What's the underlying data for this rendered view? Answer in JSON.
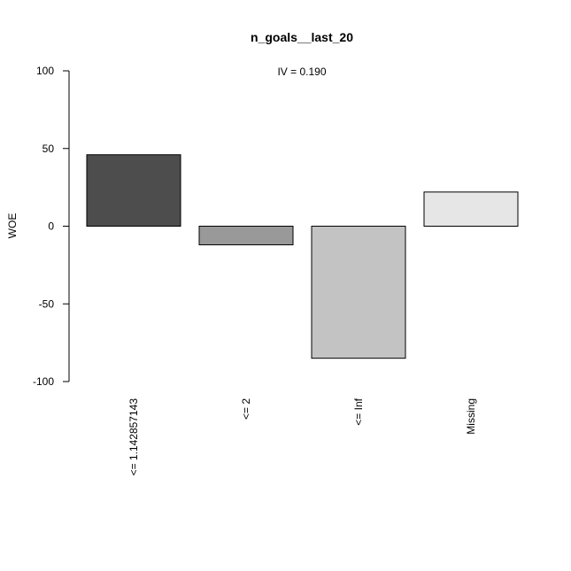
{
  "chart_data": {
    "type": "bar",
    "title": "n_goals__last_20",
    "annotation": "IV = 0.190",
    "xlabel": "",
    "ylabel": "WOE",
    "ylim": [
      -100,
      100
    ],
    "yticks": [
      -100,
      -50,
      0,
      50,
      100
    ],
    "yticks_text": [
      "-100",
      "-50",
      "0",
      "50",
      "100"
    ],
    "grid": false,
    "categories": [
      "<= 1.142857143",
      "<= 2",
      "<= Inf",
      "Missing"
    ],
    "values": [
      46,
      -12,
      -85,
      22
    ],
    "colors": [
      "#4d4d4d",
      "#999999",
      "#c3c3c3",
      "#e6e6e6"
    ]
  }
}
